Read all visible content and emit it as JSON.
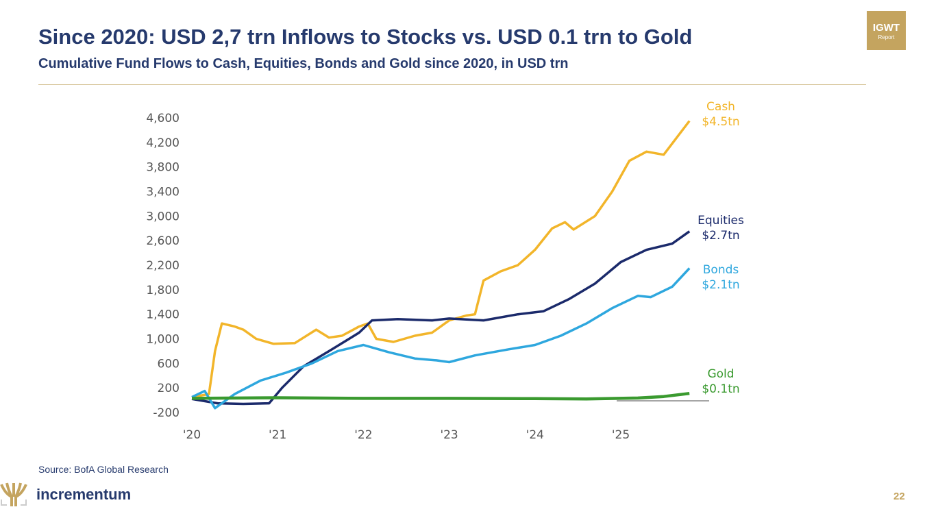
{
  "header": {
    "title": "Since 2020: USD 2,7 trn Inflows to Stocks vs. USD 0.1 trn to Gold",
    "subtitle": "Cumulative Fund Flows to Cash, Equities, Bonds and Gold since 2020, in USD trn",
    "badge_line1": "IGWT",
    "badge_line2": "Report"
  },
  "footer": {
    "source": "Source: BofA Global Research",
    "brand": "incrementum",
    "page_number": "22"
  },
  "chart_data": {
    "type": "line",
    "title": "",
    "xlabel": "",
    "ylabel": "",
    "ylim": [
      -200,
      4600
    ],
    "xlim": [
      2020,
      2026
    ],
    "yticks": [
      4600,
      4200,
      3800,
      3400,
      3000,
      2600,
      2200,
      1800,
      1400,
      1000,
      600,
      200,
      -200
    ],
    "ytick_labels": [
      "4,600",
      "4,200",
      "3,800",
      "3,400",
      "3,000",
      "2,600",
      "2,200",
      "1,800",
      "1,400",
      "1,000",
      "600",
      "200",
      "-200"
    ],
    "xticks": [
      2020,
      2021,
      2022,
      2023,
      2024,
      2025
    ],
    "xtick_labels": [
      "'20",
      "'21",
      "'22",
      "'23",
      "'24",
      "'25"
    ],
    "grid": false,
    "series": [
      {
        "name": "Cash",
        "end_label": "$4.5tn",
        "color": "#f2b52a",
        "x": [
          2020,
          2020.2,
          2020.27,
          2020.35,
          2020.5,
          2020.6,
          2020.75,
          2020.95,
          2021.2,
          2021.45,
          2021.6,
          2021.75,
          2021.95,
          2022.05,
          2022.15,
          2022.35,
          2022.6,
          2022.8,
          2023.0,
          2023.2,
          2023.3,
          2023.4,
          2023.6,
          2023.8,
          2024.0,
          2024.2,
          2024.35,
          2024.45,
          2024.7,
          2024.9,
          2025.1,
          2025.3,
          2025.5,
          2025.8
        ],
        "y": [
          50,
          100,
          800,
          1250,
          1200,
          1150,
          1000,
          920,
          930,
          1150,
          1020,
          1050,
          1200,
          1250,
          1000,
          950,
          1050,
          1100,
          1300,
          1380,
          1400,
          1950,
          2100,
          2200,
          2450,
          2800,
          2900,
          2780,
          3000,
          3400,
          3900,
          4050,
          4000,
          4550
        ]
      },
      {
        "name": "Equities",
        "end_label": "$2.7tn",
        "color": "#1b2a6b",
        "x": [
          2020,
          2020.3,
          2020.6,
          2020.9,
          2021.05,
          2021.3,
          2021.6,
          2021.95,
          2022.1,
          2022.4,
          2022.8,
          2023.0,
          2023.4,
          2023.8,
          2024.1,
          2024.4,
          2024.7,
          2025.0,
          2025.3,
          2025.6,
          2025.8
        ],
        "y": [
          20,
          -50,
          -60,
          -50,
          200,
          550,
          800,
          1100,
          1300,
          1320,
          1300,
          1330,
          1300,
          1400,
          1450,
          1650,
          1900,
          2250,
          2450,
          2550,
          2750
        ]
      },
      {
        "name": "Bonds",
        "end_label": "$2.1tn",
        "color": "#2ea7de",
        "x": [
          2020,
          2020.15,
          2020.27,
          2020.5,
          2020.8,
          2021.1,
          2021.4,
          2021.7,
          2022.0,
          2022.3,
          2022.6,
          2022.85,
          2023.0,
          2023.3,
          2023.7,
          2024.0,
          2024.3,
          2024.6,
          2024.9,
          2025.2,
          2025.35,
          2025.6,
          2025.8
        ],
        "y": [
          50,
          150,
          -130,
          100,
          320,
          450,
          600,
          800,
          900,
          780,
          680,
          650,
          620,
          730,
          830,
          900,
          1050,
          1250,
          1500,
          1700,
          1680,
          1850,
          2150
        ]
      },
      {
        "name": "Gold",
        "end_label": "$0.1tn",
        "color": "#3a9a2f",
        "x": [
          2020,
          2021,
          2022,
          2023,
          2024,
          2024.6,
          2025.2,
          2025.5,
          2025.8
        ],
        "y": [
          30,
          40,
          30,
          30,
          25,
          20,
          35,
          60,
          110
        ]
      }
    ]
  }
}
